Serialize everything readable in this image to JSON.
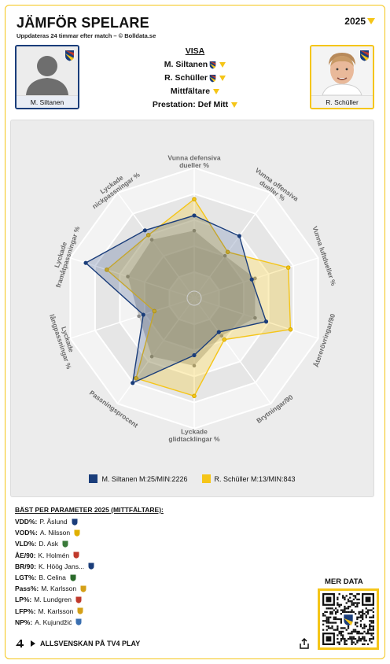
{
  "header": {
    "title": "JÄMFÖR SPELARE",
    "subtitle": "Uppdateras 24 timmar efter match – © Bolldata.se",
    "year": "2025"
  },
  "players": {
    "left": {
      "name": "M. Siltanen"
    },
    "right": {
      "name": "R. Schüller"
    }
  },
  "visa": {
    "label": "VISA",
    "player1": "M. Siltanen",
    "player2": "R. Schüller",
    "position": "Mittfältare",
    "performance": "Prestation: Def Mitt"
  },
  "chart_data": {
    "type": "radar",
    "axes": [
      "Vunna defensiva dueller %",
      "Vunna offensiva dueller %",
      "Vunna luftdueller %",
      "Återerövringar/90",
      "Brytningar/90",
      "Lyckade glidtacklingar %",
      "Passningsprocent",
      "Lyckade långpassningar %",
      "Lyckade framåtpassningar %",
      "Lyckade nickpassningar %"
    ],
    "axes_lines": [
      [
        "Vunna defensiva",
        "dueller %"
      ],
      [
        "Vunna offensiva",
        "dueller %"
      ],
      [
        "Vunna luftdueller %"
      ],
      [
        "Återerövringar/90"
      ],
      [
        "Brytningar/90"
      ],
      [
        "Lyckade",
        "glidtacklingar %"
      ],
      [
        "Passningsprocent"
      ],
      [
        "Lyckade",
        "långpassningar %"
      ],
      [
        "Lyckade",
        "framåtpassningar %"
      ],
      [
        "Lyckade",
        "nickpassningar %"
      ]
    ],
    "series": [
      {
        "name": "M. Siltanen M:25/MIN:2226",
        "color": "#1a3d7a",
        "values": [
          0.71,
          0.66,
          0.52,
          0.65,
          0.36,
          0.49,
          0.9,
          0.46,
          0.98,
          0.72
        ]
      },
      {
        "name": "R. Schüller M:13/MIN:843",
        "color": "#f5c518",
        "values": [
          0.85,
          0.49,
          0.85,
          0.87,
          0.44,
          0.84,
          0.85,
          0.36,
          0.79,
          0.67
        ]
      },
      {
        "name": "average",
        "color": "#8a8a8a",
        "values": [
          0.58,
          0.45,
          0.55,
          0.55,
          0.4,
          0.58,
          0.62,
          0.5,
          0.6,
          0.62
        ]
      }
    ],
    "rings": 5
  },
  "best": {
    "title": "BÄST PER PARAMETER 2025 (MITTFÄLTARE):",
    "rows": [
      {
        "key": "VDD%:",
        "name": "P. Åslund",
        "color": "#1a3d7a"
      },
      {
        "key": "VOD%:",
        "name": "A. Nilsson",
        "color": "#e0b000"
      },
      {
        "key": "VLD%:",
        "name": "D. Ask",
        "color": "#3a7a3a"
      },
      {
        "key": "ÅE/90:",
        "name": "K. Holmén",
        "color": "#c0392b"
      },
      {
        "key": "BR/90:",
        "name": "K. Höög Jans...",
        "color": "#1a3d7a"
      },
      {
        "key": "LGT%:",
        "name": "B. Celina",
        "color": "#2a6a2a"
      },
      {
        "key": "Pass%:",
        "name": "M. Karlsson",
        "color": "#d4a017"
      },
      {
        "key": "LP%:",
        "name": "M. Lundgren",
        "color": "#c0392b"
      },
      {
        "key": "LFP%:",
        "name": "M. Karlsson",
        "color": "#d4a017"
      },
      {
        "key": "NP%:",
        "name": "A. Kujundžić",
        "color": "#3a6fb0"
      }
    ]
  },
  "qr": {
    "label": "MER DATA"
  },
  "footer": {
    "text": "ALLSVENSKAN PÅ TV4 PLAY"
  }
}
